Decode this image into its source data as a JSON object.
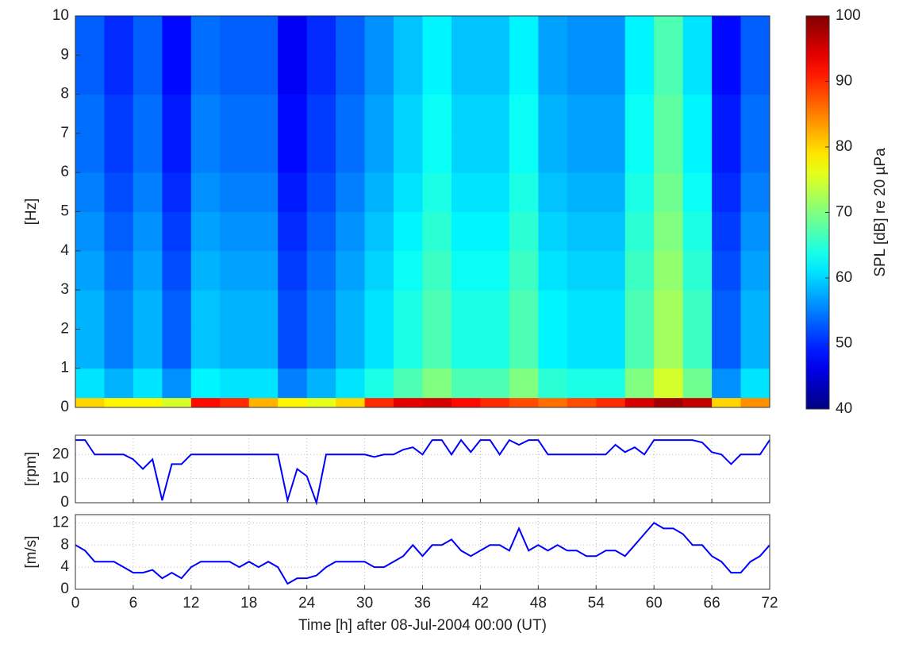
{
  "chart_data": [
    {
      "type": "heatmap",
      "ylabel": "[Hz]",
      "colorbar_label": "SPL [dB] re 20 µPa",
      "colormap": "jet",
      "xlim": [
        0,
        72
      ],
      "ylim": [
        0,
        10
      ],
      "yticks": [
        0,
        1,
        2,
        3,
        4,
        5,
        6,
        7,
        8,
        9,
        10
      ],
      "zlim": [
        40,
        100
      ],
      "zticks": [
        40,
        50,
        60,
        70,
        80,
        90,
        100
      ],
      "x_bins": [
        0,
        3,
        6,
        9,
        12,
        15,
        18,
        21,
        24,
        27,
        30,
        33,
        36,
        39,
        42,
        45,
        48,
        51,
        54,
        57,
        60,
        63,
        66,
        69,
        72
      ],
      "y_bins": [
        0,
        0.25,
        1,
        2,
        3,
        4,
        5,
        6,
        7,
        8,
        9,
        10
      ],
      "z": [
        [
          80,
          78,
          78,
          75,
          92,
          90,
          82,
          78,
          76,
          80,
          90,
          94,
          95,
          92,
          90,
          88,
          86,
          88,
          90,
          95,
          98,
          96,
          80,
          84
        ],
        [
          61,
          58,
          61,
          56,
          62,
          61,
          61,
          55,
          58,
          61,
          64,
          67,
          70,
          67,
          67,
          70,
          65,
          64,
          64,
          70,
          75,
          69,
          56,
          61
        ],
        [
          58,
          55,
          58,
          53,
          59,
          58,
          58,
          52,
          55,
          58,
          61,
          64,
          67,
          64,
          64,
          67,
          62,
          61,
          61,
          67,
          72,
          66,
          53,
          58
        ],
        [
          58,
          55,
          58,
          53,
          59,
          58,
          58,
          52,
          55,
          58,
          61,
          64,
          67,
          64,
          64,
          67,
          62,
          61,
          61,
          67,
          72,
          66,
          53,
          58
        ],
        [
          57,
          54,
          57,
          52,
          58,
          57,
          57,
          51,
          54,
          57,
          60,
          63,
          66,
          63,
          63,
          66,
          61,
          60,
          60,
          66,
          71,
          65,
          52,
          57
        ],
        [
          56,
          53,
          56,
          51,
          57,
          56,
          56,
          50,
          53,
          56,
          59,
          62,
          65,
          62,
          62,
          65,
          60,
          59,
          59,
          65,
          70,
          64,
          51,
          56
        ],
        [
          55,
          52,
          55,
          50,
          56,
          55,
          55,
          49,
          52,
          55,
          58,
          61,
          64,
          61,
          61,
          64,
          59,
          58,
          58,
          64,
          69,
          63,
          50,
          55
        ],
        [
          54,
          51,
          54,
          49,
          55,
          54,
          54,
          48,
          51,
          54,
          57,
          60,
          63,
          60,
          60,
          63,
          58,
          57,
          57,
          63,
          68,
          62,
          49,
          54
        ],
        [
          54,
          51,
          54,
          49,
          55,
          54,
          54,
          48,
          51,
          54,
          57,
          60,
          63,
          60,
          60,
          63,
          58,
          57,
          57,
          63,
          68,
          62,
          49,
          54
        ],
        [
          53,
          50,
          53,
          48,
          54,
          53,
          53,
          47,
          50,
          53,
          56,
          59,
          62,
          59,
          59,
          62,
          57,
          56,
          56,
          62,
          67,
          61,
          48,
          53
        ],
        [
          53,
          50,
          53,
          48,
          54,
          53,
          53,
          47,
          50,
          53,
          56,
          59,
          62,
          59,
          59,
          62,
          57,
          56,
          56,
          62,
          67,
          61,
          48,
          53
        ]
      ]
    },
    {
      "type": "line",
      "ylabel": "[rpm]",
      "xlim": [
        0,
        72
      ],
      "ylim": [
        0,
        28
      ],
      "yticks": [
        0,
        10,
        20
      ],
      "xticks": [
        0,
        6,
        12,
        18,
        24,
        30,
        36,
        42,
        48,
        54,
        60,
        66,
        72
      ],
      "show_xtick_labels": false,
      "grid": true,
      "x": [
        0,
        1,
        2,
        3,
        4,
        5,
        6,
        7,
        8,
        9,
        10,
        11,
        12,
        13,
        14,
        15,
        16,
        17,
        18,
        19,
        20,
        21,
        22,
        23,
        24,
        25,
        26,
        27,
        28,
        29,
        30,
        31,
        32,
        33,
        34,
        35,
        36,
        37,
        38,
        39,
        40,
        41,
        42,
        43,
        44,
        45,
        46,
        47,
        48,
        49,
        50,
        51,
        52,
        53,
        54,
        55,
        56,
        57,
        58,
        59,
        60,
        61,
        62,
        63,
        64,
        65,
        66,
        67,
        68,
        69,
        70,
        71,
        72
      ],
      "series": [
        {
          "color": "#0000ff",
          "values": [
            26,
            26,
            20,
            20,
            20,
            20,
            18,
            14,
            18,
            1,
            16,
            16,
            20,
            20,
            20,
            20,
            20,
            20,
            20,
            20,
            20,
            20,
            1,
            14,
            11,
            0,
            20,
            20,
            20,
            20,
            20,
            19,
            20,
            20,
            22,
            23,
            20,
            26,
            26,
            20,
            26,
            21,
            26,
            26,
            20,
            26,
            24,
            26,
            26,
            20,
            20,
            20,
            20,
            20,
            20,
            20,
            24,
            21,
            23,
            20,
            26,
            26,
            26,
            26,
            26,
            25,
            21,
            20,
            16,
            20,
            20,
            20,
            26
          ]
        }
      ]
    },
    {
      "type": "line",
      "ylabel": "[m/s]",
      "xlabel": "Time [h] after 08-Jul-2004 00:00 (UT)",
      "xlim": [
        0,
        72
      ],
      "ylim": [
        0,
        13.5
      ],
      "yticks": [
        0,
        4,
        8,
        12
      ],
      "xticks": [
        0,
        6,
        12,
        18,
        24,
        30,
        36,
        42,
        48,
        54,
        60,
        66,
        72
      ],
      "show_xtick_labels": true,
      "grid": true,
      "x": [
        0,
        1,
        2,
        3,
        4,
        5,
        6,
        7,
        8,
        9,
        10,
        11,
        12,
        13,
        14,
        15,
        16,
        17,
        18,
        19,
        20,
        21,
        22,
        23,
        24,
        25,
        26,
        27,
        28,
        29,
        30,
        31,
        32,
        33,
        34,
        35,
        36,
        37,
        38,
        39,
        40,
        41,
        42,
        43,
        44,
        45,
        46,
        47,
        48,
        49,
        50,
        51,
        52,
        53,
        54,
        55,
        56,
        57,
        58,
        59,
        60,
        61,
        62,
        63,
        64,
        65,
        66,
        67,
        68,
        69,
        70,
        71,
        72
      ],
      "series": [
        {
          "color": "#0000ff",
          "values": [
            8,
            7,
            5,
            5,
            5,
            4,
            3,
            3,
            3.5,
            2,
            3,
            2,
            4,
            5,
            5,
            5,
            5,
            4,
            5,
            4,
            5,
            4,
            1,
            2,
            2,
            2.5,
            4,
            5,
            5,
            5,
            5,
            4,
            4,
            5,
            6,
            8,
            6,
            8,
            8,
            9,
            7,
            6,
            7,
            8,
            8,
            7,
            11,
            7,
            8,
            7,
            8,
            7,
            7,
            6,
            6,
            7,
            7,
            6,
            8,
            10,
            12,
            11,
            11,
            10,
            8,
            8,
            6,
            5,
            3,
            3,
            5,
            6,
            8
          ]
        }
      ]
    }
  ]
}
